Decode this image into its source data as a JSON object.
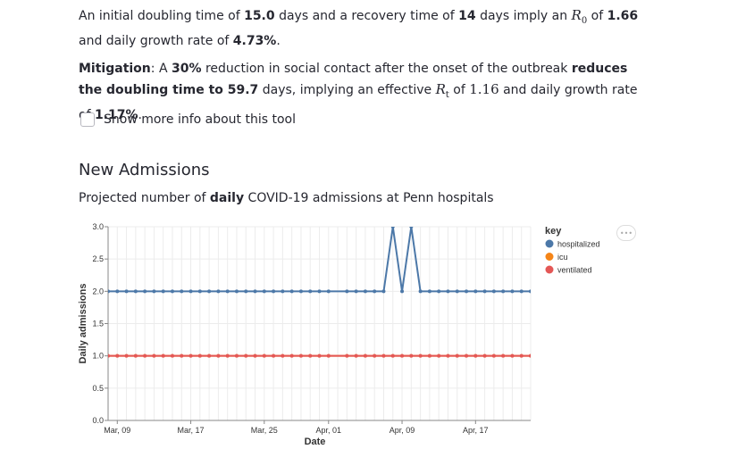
{
  "summary": {
    "p1_a": "An initial doubling time of ",
    "p1_b": "15.0",
    "p1_c": " days and a recovery time of ",
    "p1_d": "14",
    "p1_e": " days imply an ",
    "p1_f": "R",
    "p1_g": "0",
    "p1_h": " of ",
    "p1_i": "1.66",
    "p1_j": " and daily growth rate of ",
    "p1_k": "4.73%",
    "p1_l": ".",
    "p2_a": "Mitigation",
    "p2_b": ": A ",
    "p2_c": "30%",
    "p2_d": " reduction in social contact after the onset of the outbreak ",
    "p2_e": "reduces the doubling time to ",
    "p2_f": "59.7",
    "p2_g": " days, implying an effective ",
    "p2_h": "R",
    "p2_i": "t",
    "p2_j": " of ",
    "p2_k": "1.16",
    "p2_l": " and daily growth rate of ",
    "p2_m": "1.17%",
    "p2_n": "."
  },
  "more_info": {
    "label": "Show more info about this tool",
    "checked": false
  },
  "section": {
    "title": "New Admissions",
    "subtitle_a": "Projected number of ",
    "subtitle_b": "daily",
    "subtitle_c": " COVID-19 admissions at Penn hospitals"
  },
  "legend": {
    "title": "key",
    "items": [
      {
        "label": "hospitalized",
        "color": "#4c78a8"
      },
      {
        "label": "icu",
        "color": "#f58518"
      },
      {
        "label": "ventilated",
        "color": "#e45756"
      }
    ]
  },
  "menu_icon": "ellipsis-icon",
  "chart_data": {
    "type": "line",
    "xlabel": "Date",
    "ylabel": "Daily admissions",
    "ylim": [
      0,
      3.0
    ],
    "y_ticks": [
      "0.0",
      "0.5",
      "1.0",
      "1.5",
      "2.0",
      "2.5",
      "3.0"
    ],
    "x_ticks": [
      {
        "label": "Mar, 09",
        "day": 9
      },
      {
        "label": "Mar, 17",
        "day": 17
      },
      {
        "label": "Mar, 25",
        "day": 25
      },
      {
        "label": "Apr, 01",
        "day": 32
      },
      {
        "label": "Apr, 09",
        "day": 40
      },
      {
        "label": "Apr, 17",
        "day": 48
      }
    ],
    "x_start": "Mar, 09",
    "grid": true,
    "legend_position": "right",
    "series": [
      {
        "name": "hospitalized",
        "color": "#4c78a8",
        "x": [
          8,
          9,
          10,
          11,
          12,
          13,
          14,
          15,
          16,
          17,
          18,
          19,
          20,
          21,
          22,
          23,
          24,
          25,
          26,
          27,
          28,
          29,
          30,
          31,
          32,
          34,
          35,
          36,
          37,
          38,
          39,
          40,
          41,
          42,
          43,
          44,
          45,
          46,
          47,
          48,
          49,
          50,
          51,
          52,
          53,
          54
        ],
        "values": [
          2,
          2,
          2,
          2,
          2,
          2,
          2,
          2,
          2,
          2,
          2,
          2,
          2,
          2,
          2,
          2,
          2,
          2,
          2,
          2,
          2,
          2,
          2,
          2,
          2,
          2,
          2,
          2,
          2,
          2,
          3,
          2,
          3,
          2,
          2,
          2,
          2,
          2,
          2,
          2,
          2,
          2,
          2,
          2,
          2,
          2
        ]
      },
      {
        "name": "icu",
        "color": "#f58518",
        "x": [
          8,
          9,
          10,
          11,
          12,
          13,
          14,
          15,
          16,
          17,
          18,
          19,
          20,
          21,
          22,
          23,
          24,
          25,
          26,
          27,
          28,
          29,
          30,
          31,
          32,
          34,
          35,
          36,
          37,
          38,
          39,
          40,
          41,
          42,
          43,
          44,
          45,
          46,
          47,
          48,
          49,
          50,
          51,
          52,
          53,
          54
        ],
        "values": [
          1,
          1,
          1,
          1,
          1,
          1,
          1,
          1,
          1,
          1,
          1,
          1,
          1,
          1,
          1,
          1,
          1,
          1,
          1,
          1,
          1,
          1,
          1,
          1,
          1,
          1,
          1,
          1,
          1,
          1,
          1,
          1,
          1,
          1,
          1,
          1,
          1,
          1,
          1,
          1,
          1,
          1,
          1,
          1,
          1,
          1
        ]
      },
      {
        "name": "ventilated",
        "color": "#e45756",
        "x": [
          8,
          9,
          10,
          11,
          12,
          13,
          14,
          15,
          16,
          17,
          18,
          19,
          20,
          21,
          22,
          23,
          24,
          25,
          26,
          27,
          28,
          29,
          30,
          31,
          32,
          34,
          35,
          36,
          37,
          38,
          39,
          40,
          41,
          42,
          43,
          44,
          45,
          46,
          47,
          48,
          49,
          50,
          51,
          52,
          53,
          54
        ],
        "values": [
          1,
          1,
          1,
          1,
          1,
          1,
          1,
          1,
          1,
          1,
          1,
          1,
          1,
          1,
          1,
          1,
          1,
          1,
          1,
          1,
          1,
          1,
          1,
          1,
          1,
          1,
          1,
          1,
          1,
          1,
          1,
          1,
          1,
          1,
          1,
          1,
          1,
          1,
          1,
          1,
          1,
          1,
          1,
          1,
          1,
          1
        ]
      }
    ]
  }
}
